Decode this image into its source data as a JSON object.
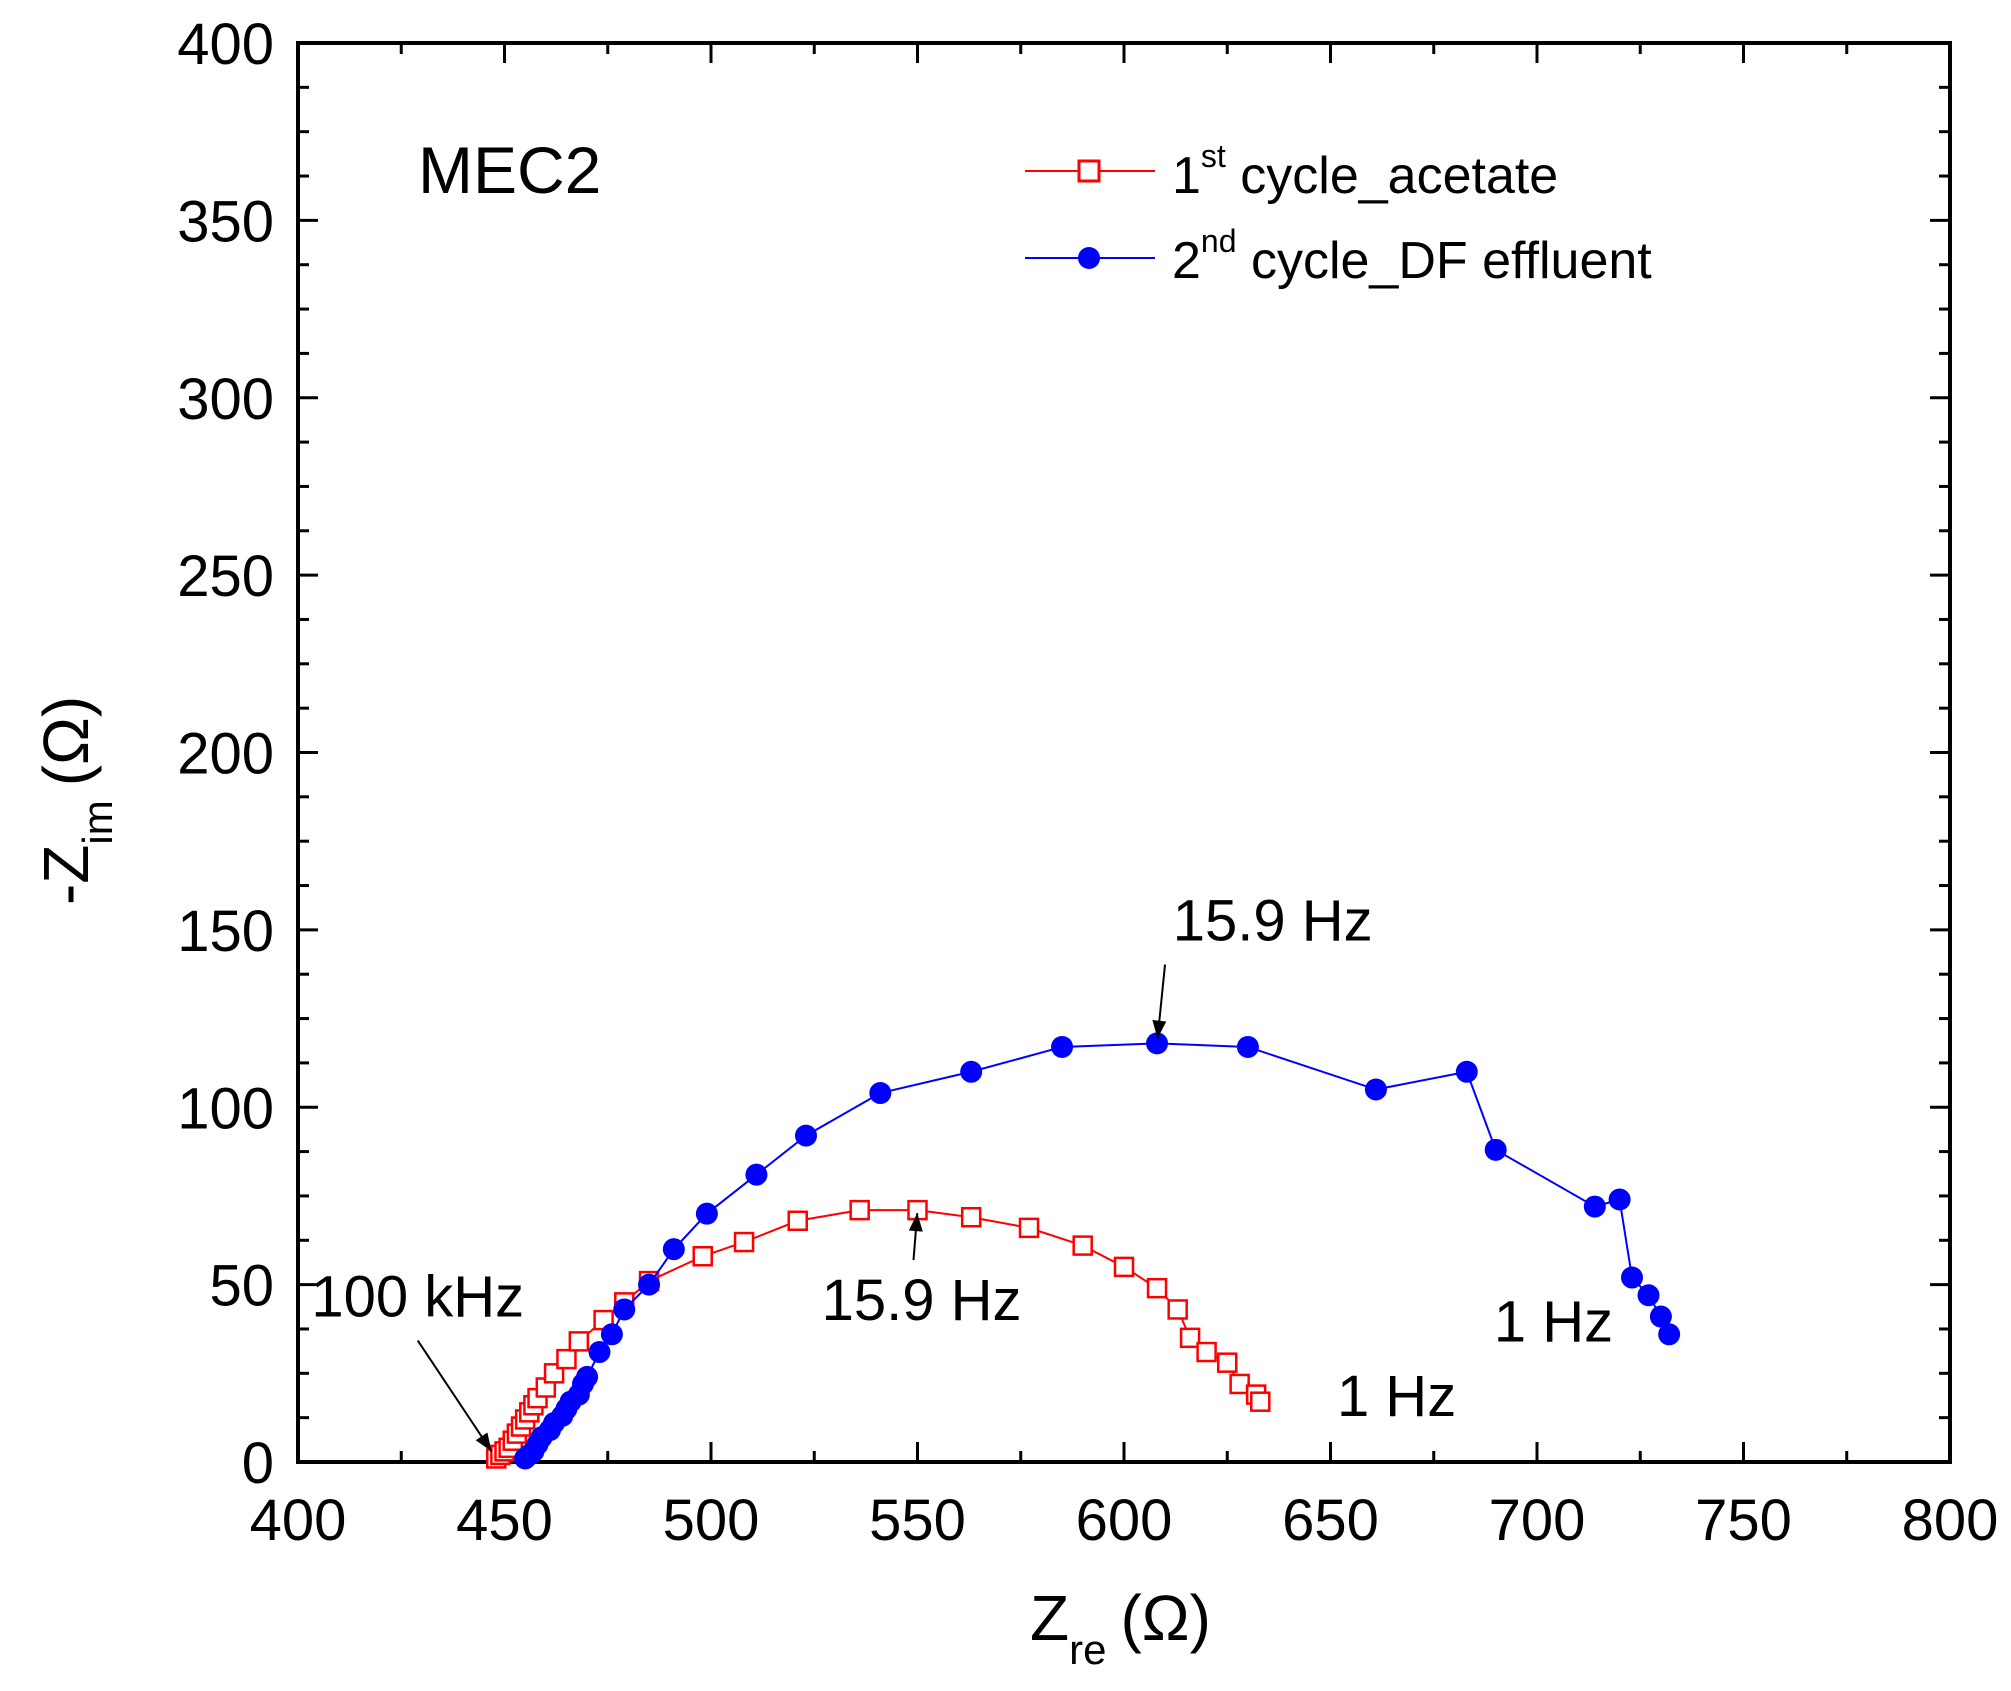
{
  "chart_data": {
    "type": "scatter",
    "title": "MEC2",
    "xlabel": {
      "main": "Z",
      "sub": "re",
      "unit": "(Ω)"
    },
    "ylabel": {
      "main": "-Z",
      "sub": "im",
      "unit": "(Ω)"
    },
    "xlim": [
      400,
      800
    ],
    "ylim": [
      0,
      400
    ],
    "xticks": [
      400,
      450,
      500,
      550,
      600,
      650,
      700,
      750,
      800
    ],
    "yticks": [
      0,
      50,
      100,
      150,
      200,
      250,
      300,
      350,
      400
    ],
    "grid": false,
    "legend_position": "top-right",
    "series": [
      {
        "name": "1st cycle_acetate",
        "legend_base": "1",
        "legend_sup": "st",
        "legend_rest": " cycle_acetate",
        "color": "#ff0000",
        "marker": "open-square",
        "points": [
          [
            448,
            1
          ],
          [
            449,
            2
          ],
          [
            450,
            3
          ],
          [
            451,
            4
          ],
          [
            452,
            6
          ],
          [
            453,
            8
          ],
          [
            454,
            10
          ],
          [
            455,
            12
          ],
          [
            456,
            14
          ],
          [
            457,
            16
          ],
          [
            458,
            18
          ],
          [
            460,
            21
          ],
          [
            462,
            25
          ],
          [
            465,
            29
          ],
          [
            468,
            34
          ],
          [
            474,
            40
          ],
          [
            479,
            45
          ],
          [
            485,
            51
          ],
          [
            498,
            58
          ],
          [
            508,
            62
          ],
          [
            521,
            68
          ],
          [
            536,
            71
          ],
          [
            550,
            71
          ],
          [
            563,
            69
          ],
          [
            577,
            66
          ],
          [
            590,
            61
          ],
          [
            600,
            55
          ],
          [
            608,
            49
          ],
          [
            613,
            43
          ],
          [
            616,
            35
          ],
          [
            620,
            31
          ],
          [
            625,
            28
          ],
          [
            628,
            22
          ],
          [
            632,
            19
          ],
          [
            633,
            17
          ]
        ]
      },
      {
        "name": "2nd cycle_DF effluent",
        "legend_base": "2",
        "legend_sup": "nd",
        "legend_rest": " cycle_DF effluent",
        "color": "#0000ff",
        "marker": "filled-circle",
        "points": [
          [
            455,
            1
          ],
          [
            456,
            2
          ],
          [
            457,
            3
          ],
          [
            458,
            5
          ],
          [
            459,
            7
          ],
          [
            461,
            9
          ],
          [
            462,
            11
          ],
          [
            464,
            13
          ],
          [
            465,
            15
          ],
          [
            466,
            17
          ],
          [
            468,
            19
          ],
          [
            469,
            22
          ],
          [
            470,
            24
          ],
          [
            473,
            31
          ],
          [
            476,
            36
          ],
          [
            479,
            43
          ],
          [
            485,
            50
          ],
          [
            491,
            60
          ],
          [
            499,
            70
          ],
          [
            511,
            81
          ],
          [
            523,
            92
          ],
          [
            541,
            104
          ],
          [
            563,
            110
          ],
          [
            585,
            117
          ],
          [
            608,
            118
          ],
          [
            630,
            117
          ],
          [
            661,
            105
          ],
          [
            683,
            110
          ],
          [
            690,
            88
          ],
          [
            714,
            72
          ],
          [
            720,
            74
          ],
          [
            723,
            52
          ],
          [
            727,
            47
          ],
          [
            730,
            41
          ],
          [
            732,
            36
          ]
        ]
      }
    ],
    "annotations": [
      {
        "text": "100 kHz",
        "anchor": [
          448,
          1
        ],
        "label_at": [
          429,
          41
        ],
        "arrow": true
      },
      {
        "text": "15.9 Hz",
        "anchor": [
          550,
          71
        ],
        "label_at": [
          551,
          40
        ],
        "arrow": true
      },
      {
        "text": "1 Hz",
        "anchor": [
          633,
          17
        ],
        "label_at": [
          666,
          13
        ],
        "arrow": false
      },
      {
        "text": "15.9 Hz",
        "anchor": [
          608,
          118
        ],
        "label_at": [
          636,
          147
        ],
        "arrow": true
      },
      {
        "text": "1 Hz",
        "anchor": [
          732,
          36
        ],
        "label_at": [
          704,
          34
        ],
        "arrow": false
      }
    ]
  }
}
